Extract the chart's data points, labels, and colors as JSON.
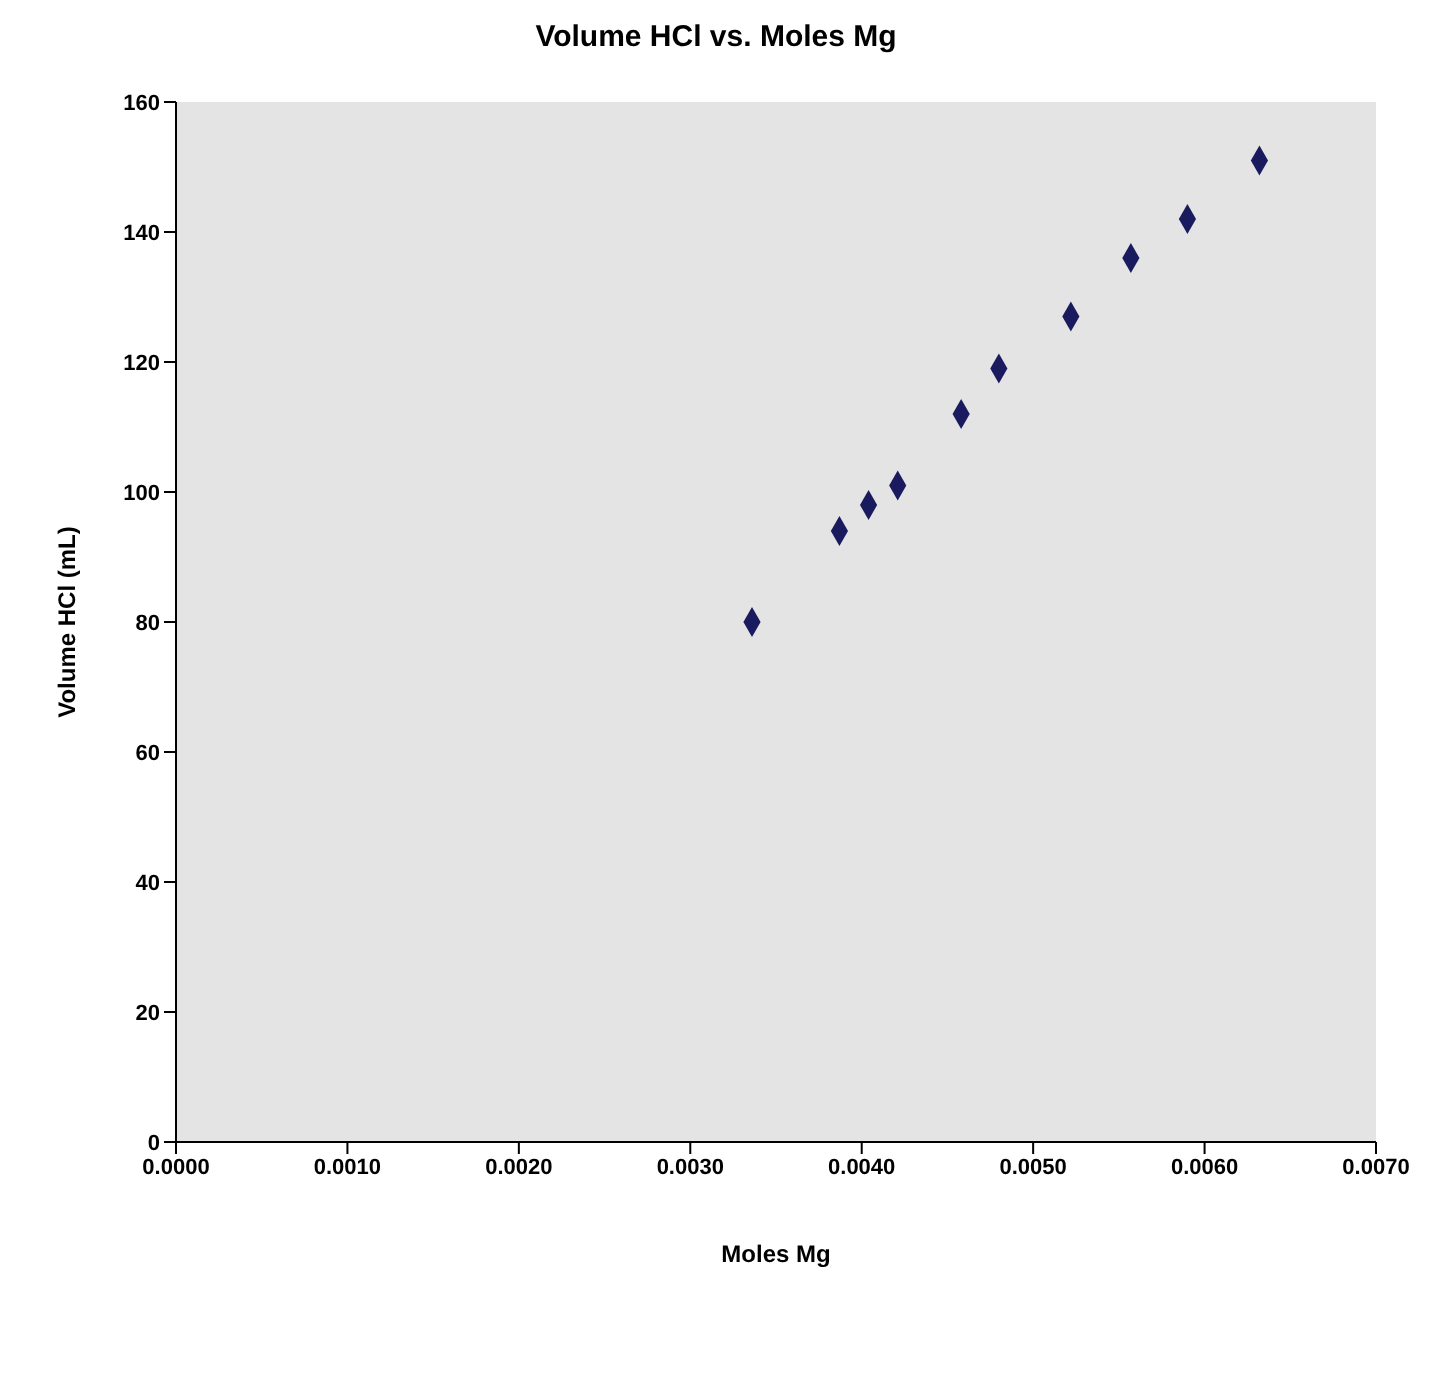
{
  "chart_data": {
    "type": "scatter",
    "title": "Volume HCl vs. Moles Mg",
    "xlabel": "Moles Mg",
    "ylabel": "Volume HCl (mL)",
    "x": [
      0.00336,
      0.00387,
      0.00404,
      0.00421,
      0.00458,
      0.0048,
      0.00522,
      0.00557,
      0.0059,
      0.00632
    ],
    "series": [
      {
        "color": "#1a1a5e",
        "values": [
          80,
          94,
          98,
          101,
          112,
          119,
          127,
          136,
          142,
          151
        ]
      }
    ],
    "xlim": [
      0,
      0.007
    ],
    "xticks": [
      {
        "value": 0,
        "label": "0.0000"
      },
      {
        "value": 0.001,
        "label": "0.0010"
      },
      {
        "value": 0.002,
        "label": "0.0020"
      },
      {
        "value": 0.003,
        "label": "0.0030"
      },
      {
        "value": 0.004,
        "label": "0.0040"
      },
      {
        "value": 0.005,
        "label": "0.0050"
      },
      {
        "value": 0.006,
        "label": "0.0060"
      },
      {
        "value": 0.007,
        "label": "0.0070"
      }
    ],
    "ylim": [
      0,
      160
    ],
    "yticks": [
      0,
      20,
      40,
      60,
      80,
      100,
      120,
      140,
      160
    ],
    "marker": "diamond",
    "grid": false,
    "legend": false
  }
}
